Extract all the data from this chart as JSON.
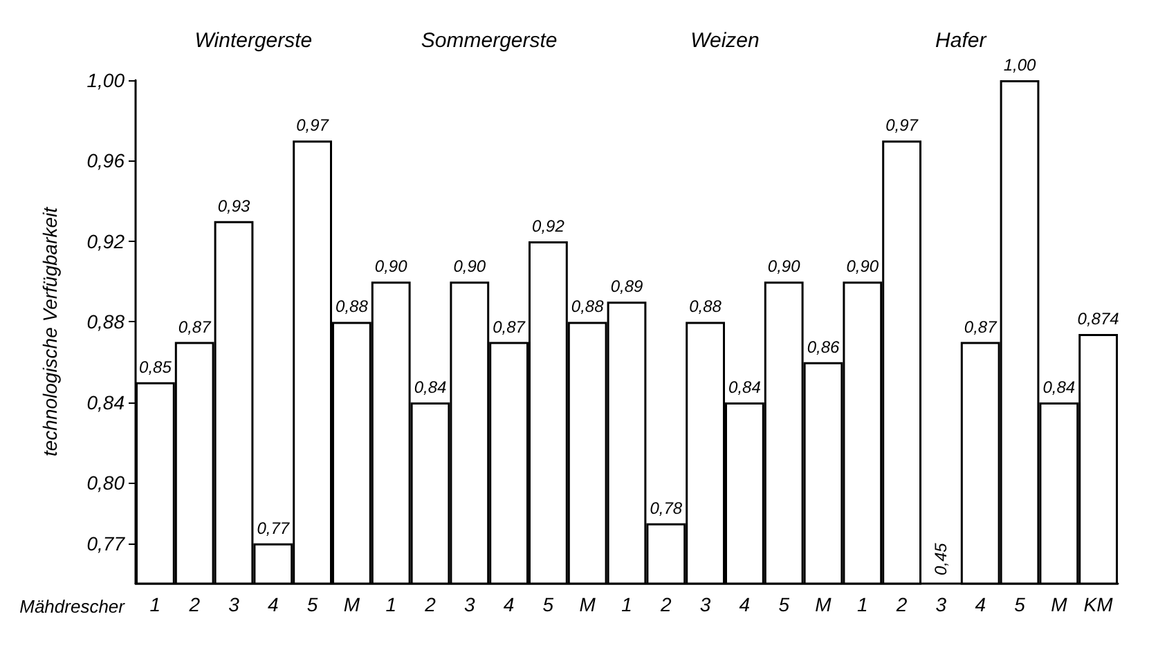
{
  "chart_data": {
    "type": "bar",
    "xlabel": "Mähdrescher",
    "ylabel": "technologische Verfügbarkeit",
    "annotations": [
      "Wintergerste",
      "Sommergerste",
      "Weizen",
      "Hafer"
    ],
    "categories": [
      "1",
      "2",
      "3",
      "4",
      "5",
      "M",
      "1",
      "2",
      "3",
      "4",
      "5",
      "M",
      "1",
      "2",
      "3",
      "4",
      "5",
      "M",
      "1",
      "2",
      "3",
      "4",
      "5",
      "M",
      "KM"
    ],
    "values": [
      0.85,
      0.87,
      0.93,
      0.77,
      0.97,
      0.88,
      0.9,
      0.84,
      0.9,
      0.87,
      0.92,
      0.88,
      0.89,
      0.78,
      0.88,
      0.84,
      0.9,
      0.86,
      0.9,
      0.97,
      null,
      0.87,
      1.0,
      0.84,
      0.874
    ],
    "value_labels": [
      "0,85",
      "0,87",
      "0,93",
      "0,77",
      "0,97",
      "0,88",
      "0,90",
      "0,84",
      "0,90",
      "0,87",
      "0,92",
      "0,88",
      "0,89",
      "0,78",
      "0,88",
      "0,84",
      "0,90",
      "0,86",
      "0,90",
      "0,97",
      "0,45",
      "0,87",
      "1,00",
      "0,84",
      "0,874"
    ],
    "color": "#ffffff",
    "ylim": [
      0.75,
      1.0
    ],
    "yticks": [
      {
        "value": 0.77,
        "label": "0,77"
      },
      {
        "value": 0.8,
        "label": "0,80"
      },
      {
        "value": 0.84,
        "label": "0,84"
      },
      {
        "value": 0.88,
        "label": "0,88"
      },
      {
        "value": 0.92,
        "label": "0,92"
      },
      {
        "value": 0.96,
        "label": "0,96"
      },
      {
        "value": 1.0,
        "label": "1,00"
      }
    ],
    "grid": false
  }
}
